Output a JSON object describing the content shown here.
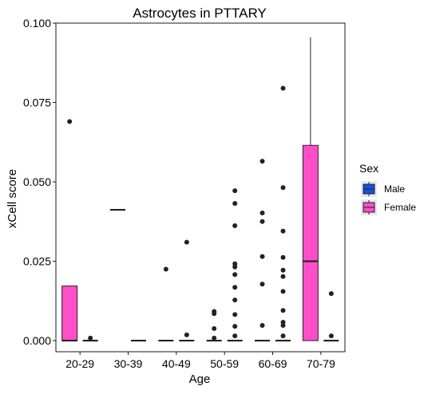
{
  "chart_data": {
    "type": "boxplot",
    "title": "Astrocytes in PTTARY",
    "xlabel": "Age",
    "ylabel": "xCell score",
    "ylim": [
      -0.0035,
      0.1
    ],
    "yticks": [
      0.0,
      0.025,
      0.05,
      0.075,
      0.1
    ],
    "ytick_labels": [
      "0.000",
      "0.025",
      "0.050",
      "0.075",
      "0.100"
    ],
    "categories": [
      "20-29",
      "30-39",
      "40-49",
      "50-59",
      "60-69",
      "70-79"
    ],
    "grid": false,
    "legend": {
      "title": "Sex",
      "position": "right",
      "entries": [
        {
          "label": "Male",
          "color": "#1550e0"
        },
        {
          "label": "Female",
          "color": "#ff4ec8"
        }
      ]
    },
    "series": [
      {
        "name": "Male",
        "color": "#1550e0",
        "boxes": [
          {
            "category": "20-29",
            "q1": 0.0,
            "median": 0.0,
            "q3": 0.0172,
            "whisker_low": 0.0,
            "whisker_high": 0.0172,
            "outliers": [
              0.069
            ]
          },
          {
            "category": "30-39",
            "q1": 0.0412,
            "median": 0.0412,
            "q3": 0.0412,
            "whisker_low": 0.0412,
            "whisker_high": 0.0412,
            "outliers": []
          },
          {
            "category": "40-49",
            "q1": 0.0,
            "median": 0.0,
            "q3": 0.0,
            "whisker_low": 0.0,
            "whisker_high": 0.0,
            "outliers": [
              0.0225
            ]
          },
          {
            "category": "50-59",
            "q1": 0.0,
            "median": 0.0,
            "q3": 0.0,
            "whisker_low": 0.0,
            "whisker_high": 0.0,
            "outliers": [
              0.0008,
              0.0038,
              0.0085,
              0.0092
            ]
          },
          {
            "category": "60-69",
            "q1": 0.0,
            "median": 0.0,
            "q3": 0.0,
            "whisker_low": 0.0,
            "whisker_high": 0.0,
            "outliers": [
              0.0048,
              0.0178,
              0.0265,
              0.0375,
              0.0402,
              0.0565
            ]
          },
          {
            "category": "70-79",
            "q1": 0.0,
            "median": 0.025,
            "q3": 0.0615,
            "whisker_low": 0.0,
            "whisker_high": 0.0955,
            "outliers": []
          }
        ]
      },
      {
        "name": "Female",
        "color": "#ff4ec8",
        "boxes": [
          {
            "category": "20-29",
            "q1": 0.0,
            "median": 0.0,
            "q3": 0.0,
            "whisker_low": 0.0,
            "whisker_high": 0.0,
            "outliers": [
              0.0008
            ]
          },
          {
            "category": "30-39",
            "q1": 0.0,
            "median": 0.0,
            "q3": 0.0,
            "whisker_low": 0.0,
            "whisker_high": 0.0,
            "outliers": []
          },
          {
            "category": "40-49",
            "q1": 0.0,
            "median": 0.0,
            "q3": 0.0,
            "whisker_low": 0.0,
            "whisker_high": 0.0,
            "outliers": [
              0.0018,
              0.031
            ]
          },
          {
            "category": "50-59",
            "q1": 0.0,
            "median": 0.0,
            "q3": 0.0,
            "whisker_low": 0.0,
            "whisker_high": 0.0,
            "outliers": [
              0.0015,
              0.0045,
              0.0082,
              0.0128,
              0.0168,
              0.0208,
              0.0232,
              0.0242,
              0.0362,
              0.0432,
              0.0472
            ]
          },
          {
            "category": "60-69",
            "q1": 0.0,
            "median": 0.0,
            "q3": 0.0,
            "whisker_low": 0.0,
            "whisker_high": 0.0,
            "outliers": [
              0.0015,
              0.0048,
              0.0058,
              0.0095,
              0.0155,
              0.0202,
              0.0222,
              0.0262,
              0.0345,
              0.0482,
              0.0795
            ]
          },
          {
            "category": "70-79",
            "q1": 0.0,
            "median": 0.0,
            "q3": 0.0,
            "whisker_low": 0.0,
            "whisker_high": 0.0,
            "outliers": [
              0.0015,
              0.0148
            ]
          }
        ]
      }
    ]
  }
}
